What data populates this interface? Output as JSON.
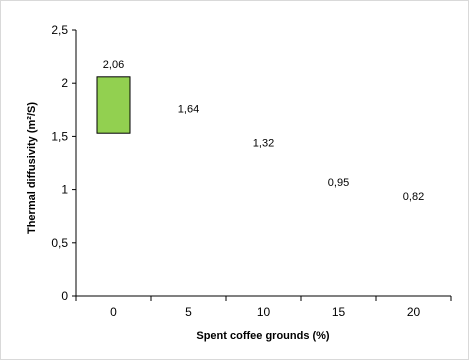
{
  "chart_data": {
    "type": "bar",
    "title": "",
    "xlabel": "Spent coffee grounds (%)",
    "ylabel": "Thermal diffusivity (m²/S)",
    "categories": [
      "0",
      "5",
      "10",
      "15",
      "20"
    ],
    "series": [
      {
        "values": [
          2.06,
          1.64,
          1.32,
          0.95,
          0.82
        ],
        "labels": [
          "2,06",
          "1,64",
          "1,32",
          "0,95",
          "0,82"
        ]
      }
    ],
    "bar_base": [
      1.53,
      1.64,
      1.32,
      0.95,
      0.82
    ],
    "ylim": [
      0,
      2.5
    ],
    "yticks": [
      "0",
      "0,5",
      "1",
      "1,5",
      "2",
      "2,5"
    ],
    "grid": false,
    "legend": "none",
    "colors": {
      "bar_fill": "#92d050",
      "bar_stroke": "#000000",
      "axis": "#000000"
    }
  }
}
